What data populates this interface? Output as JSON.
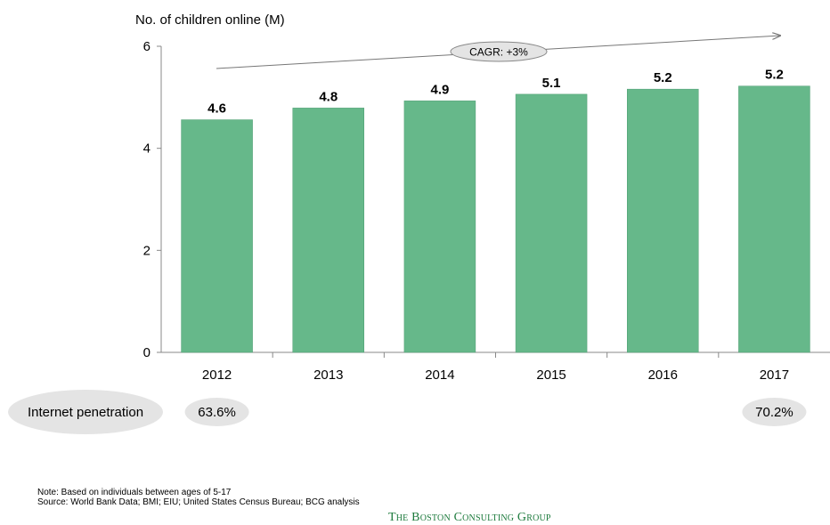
{
  "chart_data": {
    "type": "bar",
    "ylabel": "No. of children online (M)",
    "categories": [
      "2012",
      "2013",
      "2014",
      "2015",
      "2016",
      "2017"
    ],
    "values": [
      4.56,
      4.79,
      4.93,
      5.06,
      5.16,
      5.22
    ],
    "data_labels": [
      "4.6",
      "4.8",
      "4.9",
      "5.1",
      "5.2",
      "5.2"
    ],
    "ylim": [
      0,
      6
    ],
    "yticks": [
      "0",
      "2",
      "4",
      "6"
    ],
    "ytick_values": [
      0,
      2,
      4,
      6
    ],
    "bar_color": "#66b88a",
    "grid": false,
    "annotation": "CAGR: +3%",
    "penetration": {
      "label": "Internet penetration",
      "values": [
        {
          "category": "2012",
          "text": "63.6%"
        },
        {
          "category": "2017",
          "text": "70.2%"
        }
      ]
    }
  },
  "footnotes": {
    "note": "Note: Based  on individuals between ages of 5-17",
    "source": "Source: World Bank Data;  BMI;  EIU;  United States  Census Bureau;  BCG analysis"
  },
  "logo_text": "The Boston Consulting Group"
}
